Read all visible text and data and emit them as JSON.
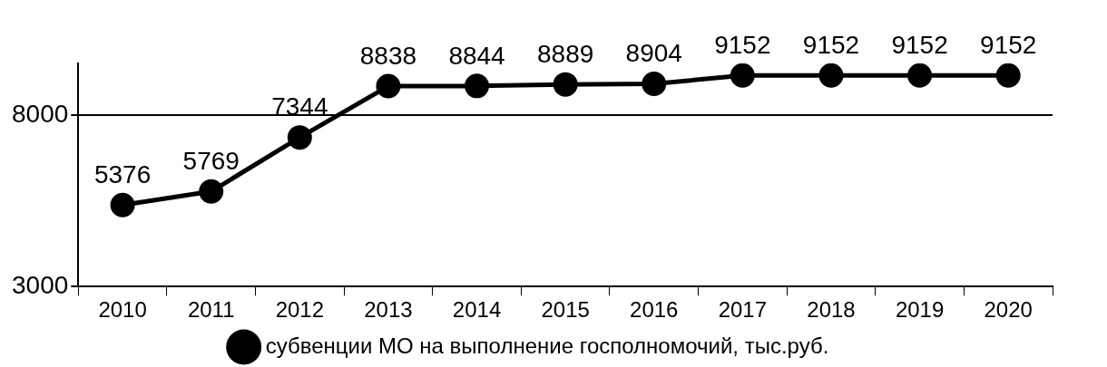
{
  "chart_data": {
    "type": "line",
    "categories": [
      "2010",
      "2011",
      "2012",
      "2013",
      "2014",
      "2015",
      "2016",
      "2017",
      "2018",
      "2019",
      "2020"
    ],
    "series": [
      {
        "name": "субвенции МО на выполнение госполномочий, тыс.руб.",
        "color": "#000000",
        "values": [
          5376,
          5769,
          7344,
          8838,
          8844,
          8889,
          8904,
          9152,
          9152,
          9152,
          9152
        ]
      }
    ],
    "ylim": [
      3000,
      9500
    ],
    "yticks": [
      3000,
      8000
    ],
    "grid": "y",
    "legend": "bottom",
    "marker": "circle",
    "line_style": "solid",
    "data_labels": true
  }
}
